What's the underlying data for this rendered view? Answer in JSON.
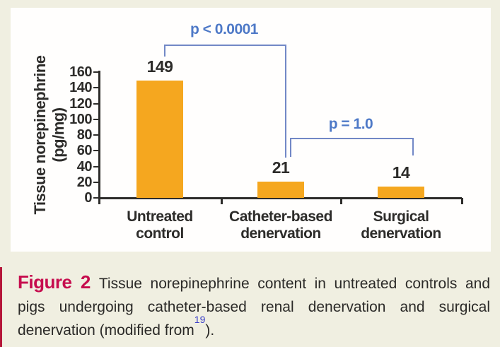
{
  "figure": {
    "label": "Figure 2",
    "caption_part1": "Tissue norepinephrine content in untreated controls and pigs undergoing catheter-based renal denervation and surgical denervation (modified from",
    "caption_ref": "19",
    "caption_part2": ")."
  },
  "chart_data": {
    "type": "bar",
    "title": "",
    "categories": [
      {
        "line1": "Untreated",
        "line2": "control"
      },
      {
        "line1": "Catheter-based",
        "line2": "denervation"
      },
      {
        "line1": "Surgical",
        "line2": "denervation"
      }
    ],
    "values": [
      149,
      21,
      14
    ],
    "value_labels": [
      "149",
      "21",
      "14"
    ],
    "ylabel_line1": "Tissue norepinephrine",
    "ylabel_line2": "(pg/mg)",
    "xlabel": "",
    "ylim": [
      0,
      160
    ],
    "yticks": [
      0,
      20,
      40,
      60,
      80,
      100,
      120,
      140,
      160
    ],
    "grid": false,
    "legend": "none",
    "annotations": [
      {
        "label": "p < 0.0001",
        "from_category": 0,
        "to_category": 1
      },
      {
        "label": "p = 1.0",
        "from_category": 1,
        "to_category": 2
      }
    ]
  },
  "colors": {
    "background": "#F0EFE1",
    "panel": "#FFFEFD",
    "bar": "#F5A71F",
    "axis_text": "#2D2C2A",
    "bracket": "#7288C6",
    "p_text": "#4E79C7",
    "figure_label": "#C60D4E",
    "reference": "#3B3FC9",
    "page_edge": "#B5173A"
  }
}
